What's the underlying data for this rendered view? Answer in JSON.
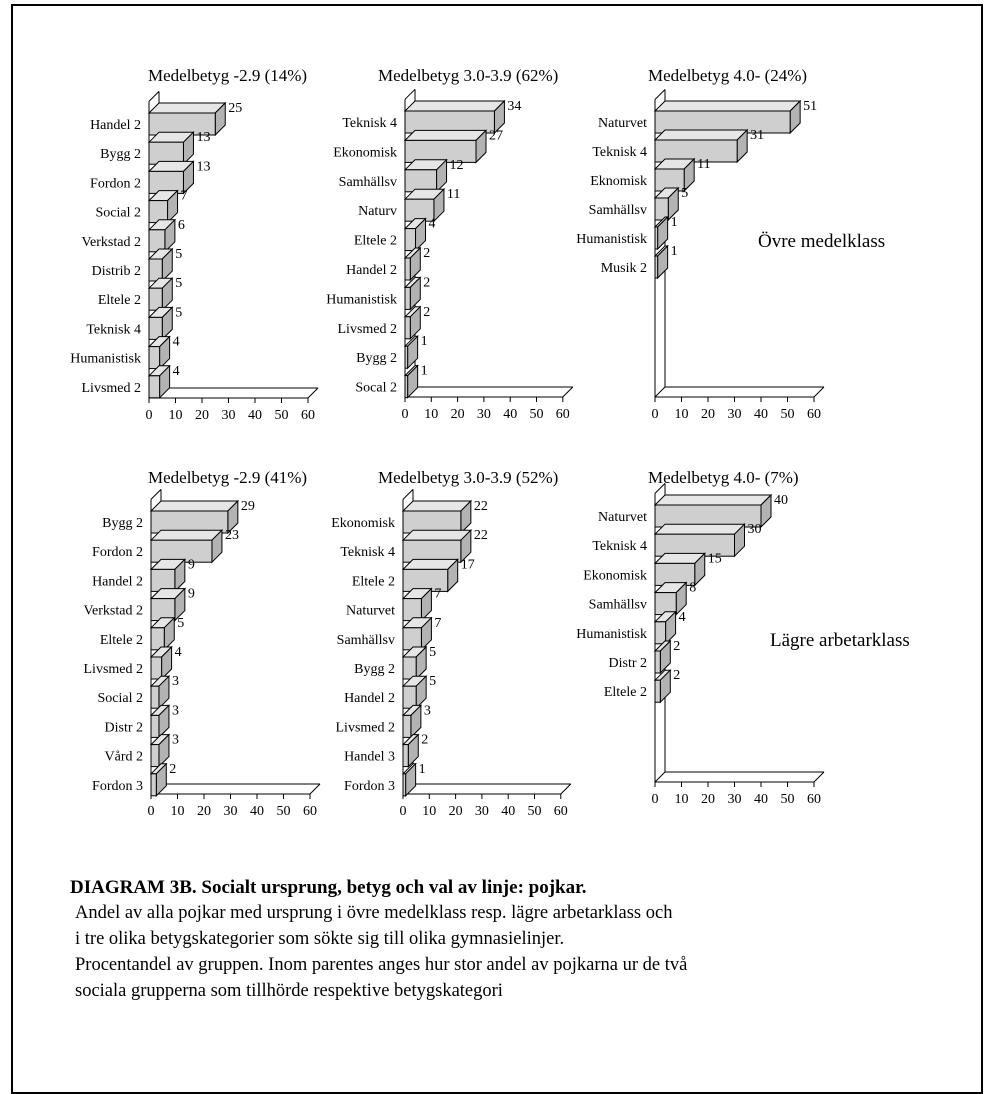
{
  "colors": {
    "bar_front": "#cfcfcf",
    "bar_top": "#e6e6e6",
    "bar_side": "#b3b3b3",
    "stroke": "#000000"
  },
  "chart_data": [
    {
      "type": "bar",
      "title": "Medelbetyg -2.9 (14%)",
      "xlim": [
        0,
        60
      ],
      "ticks": [
        0,
        10,
        20,
        30,
        40,
        50,
        60
      ],
      "categories": [
        "Handel 2",
        "Bygg 2",
        "Fordon 2",
        "Social 2",
        "Verkstad 2",
        "Distrib 2",
        "Eltele 2",
        "Teknisk 4",
        "Humanistisk",
        "Livsmed 2"
      ],
      "values": [
        25,
        13,
        13,
        7,
        6,
        5,
        5,
        5,
        4,
        4
      ]
    },
    {
      "type": "bar",
      "title": "Medelbetyg 3.0-3.9 (62%)",
      "xlim": [
        0,
        60
      ],
      "ticks": [
        0,
        10,
        20,
        30,
        40,
        50,
        60
      ],
      "categories": [
        "Teknisk 4",
        "Ekonomisk",
        "Samhällsv",
        "Naturv",
        "Eltele 2",
        "Handel 2",
        "Humanistisk",
        "Livsmed 2",
        "Bygg 2",
        "Socal 2"
      ],
      "values": [
        34,
        27,
        12,
        11,
        4,
        2,
        2,
        2,
        1,
        1
      ]
    },
    {
      "type": "bar",
      "title": "Medelbetyg 4.0- (24%)",
      "xlim": [
        0,
        60
      ],
      "ticks": [
        0,
        10,
        20,
        30,
        40,
        50,
        60
      ],
      "categories": [
        "Naturvet",
        "Teknisk 4",
        "Eknomisk",
        "Samhällsv",
        "Humanistisk",
        "Musik 2"
      ],
      "values": [
        51,
        31,
        11,
        5,
        1,
        1
      ],
      "annotation": "Övre medelklass"
    },
    {
      "type": "bar",
      "title": "Medelbetyg -2.9 (41%)",
      "xlim": [
        0,
        60
      ],
      "ticks": [
        0,
        10,
        20,
        30,
        40,
        50,
        60
      ],
      "categories": [
        "Bygg 2",
        "Fordon 2",
        "Handel 2",
        "Verkstad 2",
        "Eltele 2",
        "Livsmed 2",
        "Social 2",
        "Distr 2",
        "Vård 2",
        "Fordon 3"
      ],
      "values": [
        29,
        23,
        9,
        9,
        5,
        4,
        3,
        3,
        3,
        2
      ]
    },
    {
      "type": "bar",
      "title": "Medelbetyg 3.0-3.9 (52%)",
      "xlim": [
        0,
        60
      ],
      "ticks": [
        0,
        10,
        20,
        30,
        40,
        50,
        60
      ],
      "categories": [
        "Ekonomisk",
        "Teknisk 4",
        "Eltele 2",
        "Naturvet",
        "Samhällsv",
        "Bygg 2",
        "Handel 2",
        "Livsmed 2",
        "Handel 3",
        "Fordon 3"
      ],
      "values": [
        22,
        22,
        17,
        7,
        7,
        5,
        5,
        3,
        2,
        1
      ]
    },
    {
      "type": "bar",
      "title": "Medelbetyg 4.0- (7%)",
      "xlim": [
        0,
        60
      ],
      "ticks": [
        0,
        10,
        20,
        30,
        40,
        50,
        60
      ],
      "categories": [
        "Naturvet",
        "Teknisk 4",
        "Ekonomisk",
        "Samhällsv",
        "Humanistisk",
        "Distr 2",
        "Eltele 2"
      ],
      "values": [
        40,
        30,
        15,
        8,
        4,
        2,
        2
      ],
      "annotation": "Lägre arbetarklass"
    }
  ],
  "caption": {
    "title": "DIAGRAM 3B. Socialt ursprung, betyg och val av linje: pojkar.",
    "lines": [
      "Andel av alla pojkar med ursprung i övre medelklass resp. lägre arbetarklass och",
      "i tre olika betygskategorier som sökte sig till olika gymnasielinjer.",
      "Procentandel av gruppen. Inom parentes anges hur stor andel av pojkarna ur de två",
      "sociala grupperna som tillhörde respektive betygskategori"
    ]
  }
}
